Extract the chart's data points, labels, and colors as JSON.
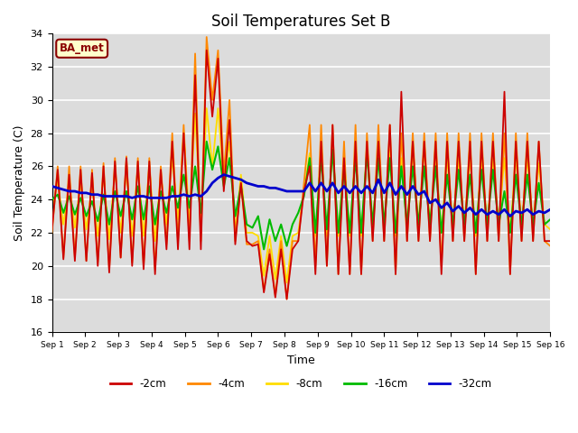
{
  "title": "Soil Temperatures Set B",
  "xlabel": "Time",
  "ylabel": "Soil Temperature (C)",
  "ylim": [
    16,
    34
  ],
  "xlim": [
    0,
    15
  ],
  "xtick_labels": [
    "Sep 1",
    "Sep 2",
    "Sep 3",
    "Sep 4",
    "Sep 5",
    "Sep 6",
    "Sep 7",
    "Sep 8",
    "Sep 9",
    "Sep 10",
    "Sep 11",
    "Sep 12",
    "Sep 13",
    "Sep 14",
    "Sep 15",
    "Sep 16"
  ],
  "ytick_vals": [
    16,
    18,
    20,
    22,
    24,
    26,
    28,
    30,
    32,
    34
  ],
  "annotation": "BA_met",
  "bg_color": "#dcdcdc",
  "line_colors": {
    "-2cm": "#cc0000",
    "-4cm": "#ff8800",
    "-8cm": "#ffdd00",
    "-16cm": "#00bb00",
    "-32cm": "#0000cc"
  },
  "legend_entries": [
    "-2cm",
    "-4cm",
    "-8cm",
    "-16cm",
    "-32cm"
  ],
  "t_2cm": [
    22.2,
    25.8,
    20.4,
    25.5,
    20.3,
    25.8,
    20.3,
    25.6,
    20.0,
    26.0,
    19.6,
    26.3,
    20.5,
    26.5,
    20.0,
    26.3,
    19.8,
    26.3,
    19.5,
    25.8,
    21.0,
    27.5,
    21.0,
    28.0,
    21.0,
    31.5,
    21.0,
    33.0,
    29.0,
    32.5,
    24.5,
    28.8,
    21.3,
    25.0,
    21.5,
    21.2,
    21.3,
    18.4,
    20.7,
    18.1,
    21.0,
    18.0,
    21.0,
    21.5,
    24.5,
    26.0,
    19.5,
    27.5,
    20.0,
    28.5,
    19.5,
    26.5,
    19.5,
    27.5,
    19.5,
    27.5,
    21.5,
    27.5,
    21.5,
    28.5,
    19.5,
    30.5,
    21.5,
    27.5,
    21.5,
    27.5,
    21.5,
    27.5,
    19.5,
    27.5,
    21.5,
    27.5,
    21.5,
    27.5,
    19.5,
    27.5,
    21.5,
    27.5,
    21.5,
    30.5,
    19.5,
    27.5,
    21.5,
    27.5,
    21.5,
    27.5,
    21.5,
    21.5
  ],
  "t_4cm": [
    22.0,
    26.0,
    20.5,
    26.0,
    20.5,
    26.0,
    20.3,
    25.8,
    20.2,
    26.2,
    19.8,
    26.5,
    20.5,
    26.6,
    20.2,
    26.5,
    20.0,
    26.5,
    19.8,
    26.0,
    21.3,
    28.0,
    21.5,
    28.5,
    21.5,
    32.8,
    21.5,
    33.8,
    30.0,
    33.0,
    25.5,
    30.0,
    21.5,
    25.0,
    21.3,
    21.3,
    21.5,
    18.5,
    21.0,
    18.2,
    21.5,
    18.0,
    21.5,
    21.5,
    25.0,
    28.5,
    20.0,
    28.5,
    20.0,
    28.5,
    19.5,
    27.5,
    19.5,
    28.5,
    19.5,
    28.0,
    21.5,
    28.5,
    21.5,
    28.5,
    19.5,
    28.0,
    21.5,
    28.0,
    21.5,
    28.0,
    21.5,
    28.0,
    20.0,
    28.0,
    21.5,
    28.0,
    21.5,
    28.0,
    19.5,
    28.0,
    21.5,
    28.0,
    21.5,
    28.0,
    19.5,
    28.0,
    21.5,
    28.0,
    21.5,
    27.5,
    21.5,
    21.2
  ],
  "t_8cm": [
    23.2,
    25.2,
    22.5,
    25.0,
    22.3,
    25.0,
    22.2,
    24.8,
    21.8,
    25.5,
    21.6,
    25.8,
    22.0,
    25.8,
    21.8,
    26.0,
    21.8,
    26.0,
    21.5,
    25.5,
    22.5,
    26.5,
    22.8,
    28.0,
    22.8,
    29.2,
    22.5,
    29.5,
    26.0,
    29.5,
    25.0,
    27.5,
    22.0,
    25.5,
    22.0,
    22.0,
    21.8,
    19.4,
    21.8,
    19.2,
    21.8,
    19.0,
    21.8,
    22.0,
    24.5,
    26.8,
    21.8,
    26.8,
    21.8,
    27.2,
    21.8,
    26.5,
    21.8,
    26.8,
    21.8,
    26.8,
    22.5,
    26.8,
    22.5,
    27.0,
    21.8,
    26.5,
    22.5,
    27.0,
    22.5,
    27.0,
    22.5,
    26.5,
    22.0,
    26.5,
    22.5,
    26.5,
    22.5,
    26.5,
    21.8,
    26.5,
    22.5,
    26.5,
    22.5,
    26.5,
    22.0,
    26.5,
    22.5,
    26.5,
    22.5,
    26.2,
    22.5,
    22.2
  ],
  "t_16cm": [
    24.0,
    24.3,
    23.2,
    24.2,
    23.1,
    24.1,
    23.0,
    23.9,
    22.7,
    24.3,
    22.5,
    24.5,
    23.0,
    24.5,
    22.8,
    24.8,
    22.8,
    24.8,
    22.5,
    24.5,
    23.2,
    24.8,
    23.5,
    25.5,
    23.5,
    26.0,
    23.2,
    27.5,
    25.8,
    27.2,
    24.8,
    26.5,
    23.0,
    24.8,
    22.5,
    22.3,
    23.0,
    21.0,
    22.8,
    21.5,
    22.5,
    21.2,
    22.5,
    23.2,
    24.2,
    26.5,
    22.0,
    26.5,
    22.2,
    27.0,
    22.0,
    25.8,
    22.0,
    26.5,
    22.0,
    26.8,
    22.5,
    26.5,
    22.5,
    26.5,
    22.0,
    26.0,
    22.5,
    26.0,
    22.5,
    26.0,
    22.5,
    26.0,
    22.0,
    25.5,
    22.5,
    25.8,
    22.5,
    25.5,
    22.0,
    25.8,
    22.5,
    25.8,
    22.5,
    24.5,
    22.0,
    25.5,
    22.5,
    25.5,
    22.5,
    25.0,
    22.5,
    22.8
  ],
  "t_32cm": [
    24.8,
    24.7,
    24.6,
    24.5,
    24.5,
    24.4,
    24.4,
    24.3,
    24.3,
    24.2,
    24.2,
    24.2,
    24.2,
    24.2,
    24.1,
    24.2,
    24.2,
    24.1,
    24.1,
    24.1,
    24.1,
    24.2,
    24.2,
    24.3,
    24.2,
    24.3,
    24.2,
    24.5,
    25.0,
    25.3,
    25.5,
    25.4,
    25.3,
    25.2,
    25.0,
    24.9,
    24.8,
    24.8,
    24.7,
    24.7,
    24.6,
    24.5,
    24.5,
    24.5,
    24.5,
    25.0,
    24.5,
    25.0,
    24.5,
    25.0,
    24.4,
    24.8,
    24.4,
    24.8,
    24.4,
    24.8,
    24.4,
    25.2,
    24.4,
    25.0,
    24.3,
    24.8,
    24.3,
    24.8,
    24.3,
    24.5,
    23.8,
    24.0,
    23.5,
    23.8,
    23.3,
    23.6,
    23.2,
    23.5,
    23.1,
    23.4,
    23.1,
    23.3,
    23.1,
    23.4,
    23.0,
    23.3,
    23.2,
    23.4,
    23.1,
    23.3,
    23.2,
    23.4
  ]
}
